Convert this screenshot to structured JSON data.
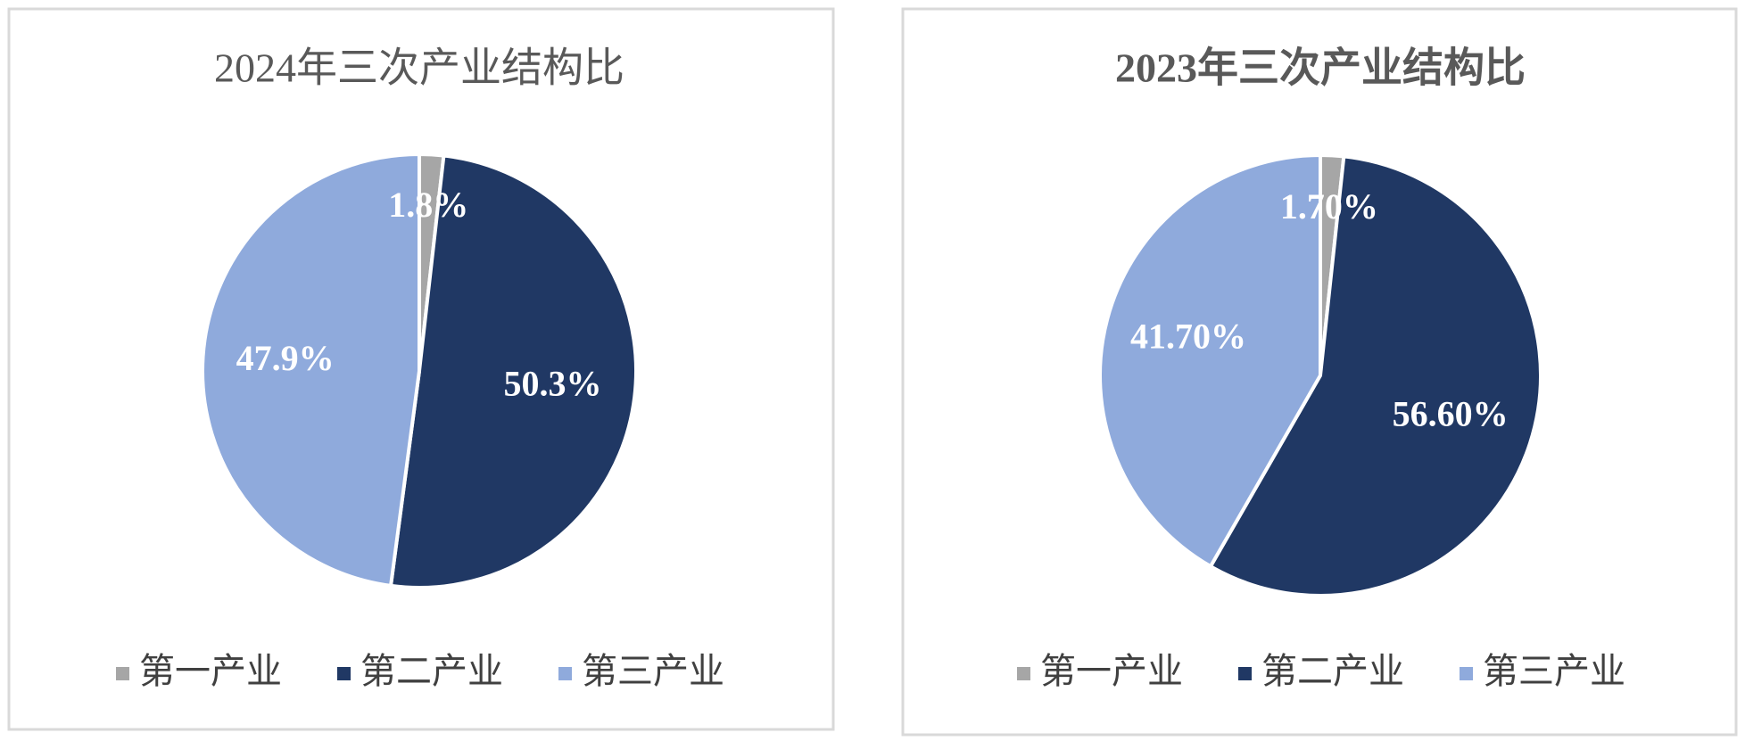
{
  "chart_data": [
    {
      "type": "pie",
      "title": "2024年三次产业结构比",
      "title_bold": false,
      "categories": [
        "第一产业",
        "第二产业",
        "第三产业"
      ],
      "values": [
        1.8,
        50.3,
        47.9
      ],
      "value_labels": [
        "1.8%",
        "50.3%",
        "47.9%"
      ],
      "colors": [
        "#a6a6a6",
        "#203864",
        "#8faadc"
      ],
      "legend": "bottom"
    },
    {
      "type": "pie",
      "title": "2023年三次产业结构比",
      "title_bold": true,
      "categories": [
        "第一产业",
        "第二产业",
        "第三产业"
      ],
      "values": [
        1.7,
        56.6,
        41.7
      ],
      "value_labels": [
        "1.70%",
        "56.60%",
        "41.70%"
      ],
      "colors": [
        "#a6a6a6",
        "#203864",
        "#8faadc"
      ],
      "legend": "bottom"
    }
  ]
}
